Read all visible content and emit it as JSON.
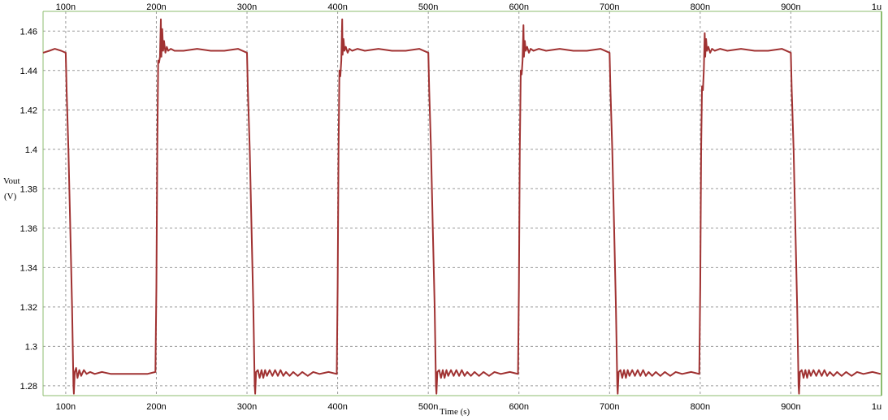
{
  "chart_data": {
    "type": "line",
    "title": "",
    "xlabel": "Time (s)",
    "ylabel": "Vout",
    "ylabel_unit": "(V)",
    "xlim": [
      75,
      1000
    ],
    "ylim": [
      1.275,
      1.47
    ],
    "grid": true,
    "x_ticks": [
      {
        "value": 100,
        "label": "100n"
      },
      {
        "value": 200,
        "label": "200n"
      },
      {
        "value": 300,
        "label": "300n"
      },
      {
        "value": 400,
        "label": "400n"
      },
      {
        "value": 500,
        "label": "500n"
      },
      {
        "value": 600,
        "label": "600n"
      },
      {
        "value": 700,
        "label": "700n"
      },
      {
        "value": 800,
        "label": "800n"
      },
      {
        "value": 900,
        "label": "900n"
      },
      {
        "value": 1000,
        "label": "1u"
      }
    ],
    "y_ticks": [
      {
        "value": 1.28,
        "label": "1.28"
      },
      {
        "value": 1.3,
        "label": "1.3"
      },
      {
        "value": 1.32,
        "label": "1.32"
      },
      {
        "value": 1.34,
        "label": "1.34"
      },
      {
        "value": 1.36,
        "label": "1.36"
      },
      {
        "value": 1.38,
        "label": "1.38"
      },
      {
        "value": 1.4,
        "label": "1.4"
      },
      {
        "value": 1.42,
        "label": "1.42"
      },
      {
        "value": 1.44,
        "label": "1.44"
      },
      {
        "value": 1.46,
        "label": "1.46"
      }
    ],
    "series": [
      {
        "color": "#a03232",
        "points": [
          [
            75,
            1.449
          ],
          [
            82,
            1.45
          ],
          [
            88,
            1.451
          ],
          [
            95,
            1.45
          ],
          [
            100,
            1.449
          ],
          [
            101,
            1.43
          ],
          [
            103,
            1.4
          ],
          [
            105,
            1.36
          ],
          [
            107,
            1.32
          ],
          [
            108.5,
            1.28
          ],
          [
            109,
            1.276
          ],
          [
            110,
            1.287
          ],
          [
            111.5,
            1.289
          ],
          [
            113,
            1.284
          ],
          [
            115,
            1.288
          ],
          [
            117,
            1.285
          ],
          [
            120,
            1.288
          ],
          [
            123,
            1.286
          ],
          [
            127,
            1.287
          ],
          [
            132,
            1.286
          ],
          [
            140,
            1.287
          ],
          [
            150,
            1.286
          ],
          [
            165,
            1.286
          ],
          [
            180,
            1.286
          ],
          [
            190,
            1.286
          ],
          [
            199,
            1.287
          ],
          [
            200,
            1.33
          ],
          [
            201,
            1.4
          ],
          [
            202,
            1.445
          ],
          [
            203,
            1.444
          ],
          [
            204,
            1.447
          ],
          [
            205,
            1.466
          ],
          [
            205.5,
            1.447
          ],
          [
            206.5,
            1.461
          ],
          [
            207.5,
            1.45
          ],
          [
            208.5,
            1.455
          ],
          [
            210,
            1.449
          ],
          [
            211.5,
            1.452
          ],
          [
            213,
            1.45
          ],
          [
            216,
            1.451
          ],
          [
            220,
            1.45
          ],
          [
            230,
            1.45
          ],
          [
            245,
            1.451
          ],
          [
            260,
            1.45
          ],
          [
            275,
            1.45
          ],
          [
            290,
            1.451
          ],
          [
            300,
            1.449
          ],
          [
            301,
            1.43
          ],
          [
            303,
            1.4
          ],
          [
            305,
            1.36
          ],
          [
            307,
            1.32
          ],
          [
            308.5,
            1.28
          ],
          [
            309,
            1.276
          ],
          [
            310,
            1.287
          ],
          [
            312,
            1.288
          ],
          [
            314,
            1.284
          ],
          [
            316,
            1.288
          ],
          [
            318,
            1.284
          ],
          [
            320,
            1.288
          ],
          [
            322,
            1.285
          ],
          [
            325,
            1.288
          ],
          [
            328,
            1.285
          ],
          [
            331,
            1.288
          ],
          [
            334,
            1.285
          ],
          [
            337,
            1.288
          ],
          [
            340,
            1.285
          ],
          [
            343,
            1.287
          ],
          [
            347,
            1.285
          ],
          [
            351,
            1.287
          ],
          [
            356,
            1.285
          ],
          [
            361,
            1.287
          ],
          [
            367,
            1.285
          ],
          [
            373,
            1.287
          ],
          [
            380,
            1.286
          ],
          [
            390,
            1.287
          ],
          [
            399,
            1.286
          ],
          [
            400,
            1.33
          ],
          [
            401,
            1.4
          ],
          [
            402,
            1.44
          ],
          [
            403,
            1.437
          ],
          [
            404,
            1.445
          ],
          [
            405,
            1.466
          ],
          [
            405.5,
            1.448
          ],
          [
            406.5,
            1.456
          ],
          [
            407.5,
            1.45
          ],
          [
            409,
            1.452
          ],
          [
            411,
            1.449
          ],
          [
            413,
            1.451
          ],
          [
            416,
            1.45
          ],
          [
            422,
            1.451
          ],
          [
            430,
            1.45
          ],
          [
            445,
            1.451
          ],
          [
            460,
            1.45
          ],
          [
            475,
            1.45
          ],
          [
            490,
            1.451
          ],
          [
            500,
            1.449
          ],
          [
            501,
            1.43
          ],
          [
            503,
            1.4
          ],
          [
            505,
            1.36
          ],
          [
            507,
            1.32
          ],
          [
            508.5,
            1.28
          ],
          [
            509,
            1.276
          ],
          [
            510,
            1.287
          ],
          [
            512,
            1.288
          ],
          [
            514,
            1.284
          ],
          [
            516,
            1.288
          ],
          [
            518,
            1.284
          ],
          [
            520,
            1.288
          ],
          [
            522,
            1.285
          ],
          [
            525,
            1.288
          ],
          [
            528,
            1.285
          ],
          [
            531,
            1.288
          ],
          [
            534,
            1.285
          ],
          [
            537,
            1.288
          ],
          [
            540,
            1.285
          ],
          [
            543,
            1.287
          ],
          [
            547,
            1.285
          ],
          [
            551,
            1.287
          ],
          [
            556,
            1.285
          ],
          [
            561,
            1.287
          ],
          [
            567,
            1.285
          ],
          [
            573,
            1.287
          ],
          [
            580,
            1.286
          ],
          [
            590,
            1.287
          ],
          [
            599,
            1.286
          ],
          [
            600,
            1.33
          ],
          [
            601,
            1.4
          ],
          [
            602,
            1.44
          ],
          [
            603,
            1.438
          ],
          [
            604,
            1.445
          ],
          [
            605,
            1.463
          ],
          [
            605.5,
            1.447
          ],
          [
            606.5,
            1.455
          ],
          [
            607.5,
            1.45
          ],
          [
            609,
            1.452
          ],
          [
            611,
            1.449
          ],
          [
            613,
            1.451
          ],
          [
            616,
            1.45
          ],
          [
            622,
            1.451
          ],
          [
            630,
            1.45
          ],
          [
            645,
            1.451
          ],
          [
            660,
            1.45
          ],
          [
            675,
            1.45
          ],
          [
            690,
            1.451
          ],
          [
            700,
            1.449
          ],
          [
            701,
            1.43
          ],
          [
            703,
            1.4
          ],
          [
            705,
            1.36
          ],
          [
            707,
            1.32
          ],
          [
            708.5,
            1.28
          ],
          [
            709,
            1.276
          ],
          [
            710,
            1.287
          ],
          [
            712,
            1.288
          ],
          [
            714,
            1.284
          ],
          [
            716,
            1.288
          ],
          [
            718,
            1.284
          ],
          [
            720,
            1.288
          ],
          [
            722,
            1.285
          ],
          [
            725,
            1.288
          ],
          [
            728,
            1.285
          ],
          [
            731,
            1.288
          ],
          [
            734,
            1.285
          ],
          [
            737,
            1.288
          ],
          [
            740,
            1.285
          ],
          [
            743,
            1.287
          ],
          [
            747,
            1.285
          ],
          [
            751,
            1.287
          ],
          [
            756,
            1.285
          ],
          [
            761,
            1.287
          ],
          [
            767,
            1.285
          ],
          [
            773,
            1.287
          ],
          [
            780,
            1.286
          ],
          [
            790,
            1.287
          ],
          [
            799,
            1.286
          ],
          [
            800,
            1.33
          ],
          [
            801,
            1.4
          ],
          [
            802,
            1.432
          ],
          [
            803,
            1.43
          ],
          [
            804,
            1.44
          ],
          [
            805,
            1.459
          ],
          [
            805.5,
            1.447
          ],
          [
            806.5,
            1.456
          ],
          [
            807.5,
            1.45
          ],
          [
            809,
            1.452
          ],
          [
            811,
            1.449
          ],
          [
            813,
            1.451
          ],
          [
            816,
            1.45
          ],
          [
            822,
            1.451
          ],
          [
            830,
            1.45
          ],
          [
            845,
            1.451
          ],
          [
            860,
            1.45
          ],
          [
            875,
            1.45
          ],
          [
            890,
            1.451
          ],
          [
            900,
            1.449
          ],
          [
            901,
            1.43
          ],
          [
            903,
            1.4
          ],
          [
            905,
            1.36
          ],
          [
            907,
            1.32
          ],
          [
            908.5,
            1.28
          ],
          [
            909,
            1.276
          ],
          [
            910,
            1.287
          ],
          [
            912,
            1.288
          ],
          [
            914,
            1.284
          ],
          [
            916,
            1.288
          ],
          [
            918,
            1.284
          ],
          [
            920,
            1.288
          ],
          [
            922,
            1.285
          ],
          [
            925,
            1.288
          ],
          [
            928,
            1.285
          ],
          [
            931,
            1.288
          ],
          [
            934,
            1.285
          ],
          [
            937,
            1.288
          ],
          [
            940,
            1.285
          ],
          [
            943,
            1.287
          ],
          [
            947,
            1.285
          ],
          [
            951,
            1.287
          ],
          [
            956,
            1.285
          ],
          [
            961,
            1.287
          ],
          [
            967,
            1.285
          ],
          [
            973,
            1.287
          ],
          [
            980,
            1.286
          ],
          [
            990,
            1.287
          ],
          [
            999,
            1.286
          ]
        ]
      }
    ]
  }
}
